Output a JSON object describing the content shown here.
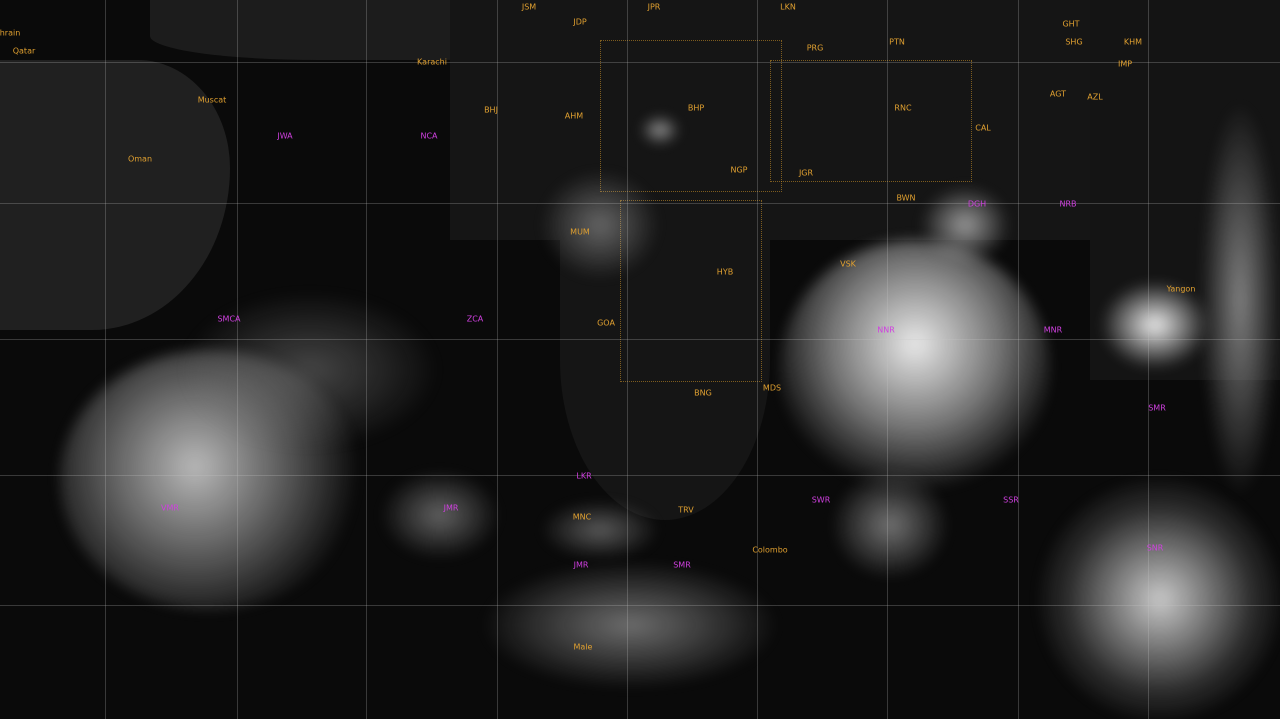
{
  "colors": {
    "city_label": "#e0a030",
    "station_label": "#d040e0",
    "gridline": "#c8c8c8",
    "background": "#0a0a0a"
  },
  "city_labels": [
    "hrain",
    "Qatar",
    "Muscat",
    "Karachi",
    "Oman",
    "JSM",
    "JDP",
    "JPR",
    "LKN",
    "BHJ",
    "AHM",
    "BHP",
    "PRG",
    "PTN",
    "GHT",
    "SHG",
    "KHM",
    "IMP",
    "AGT",
    "AZL",
    "RNC",
    "CAL",
    "NGP",
    "JGR",
    "BWN",
    "VSK",
    "HYB",
    "MUM",
    "GOA",
    "BNG",
    "MDS",
    "TRV",
    "Colombo",
    "MNC",
    "Male",
    "Yangon"
  ],
  "station_labels": [
    "JWA",
    "NCA",
    "SMCA",
    "ZCA",
    "DGH",
    "NRB",
    "NNR",
    "MNR",
    "SMR",
    "VMR",
    "JMR",
    "LKR",
    "SWR",
    "SSR",
    "SNR",
    "JMR",
    "SMR"
  ]
}
